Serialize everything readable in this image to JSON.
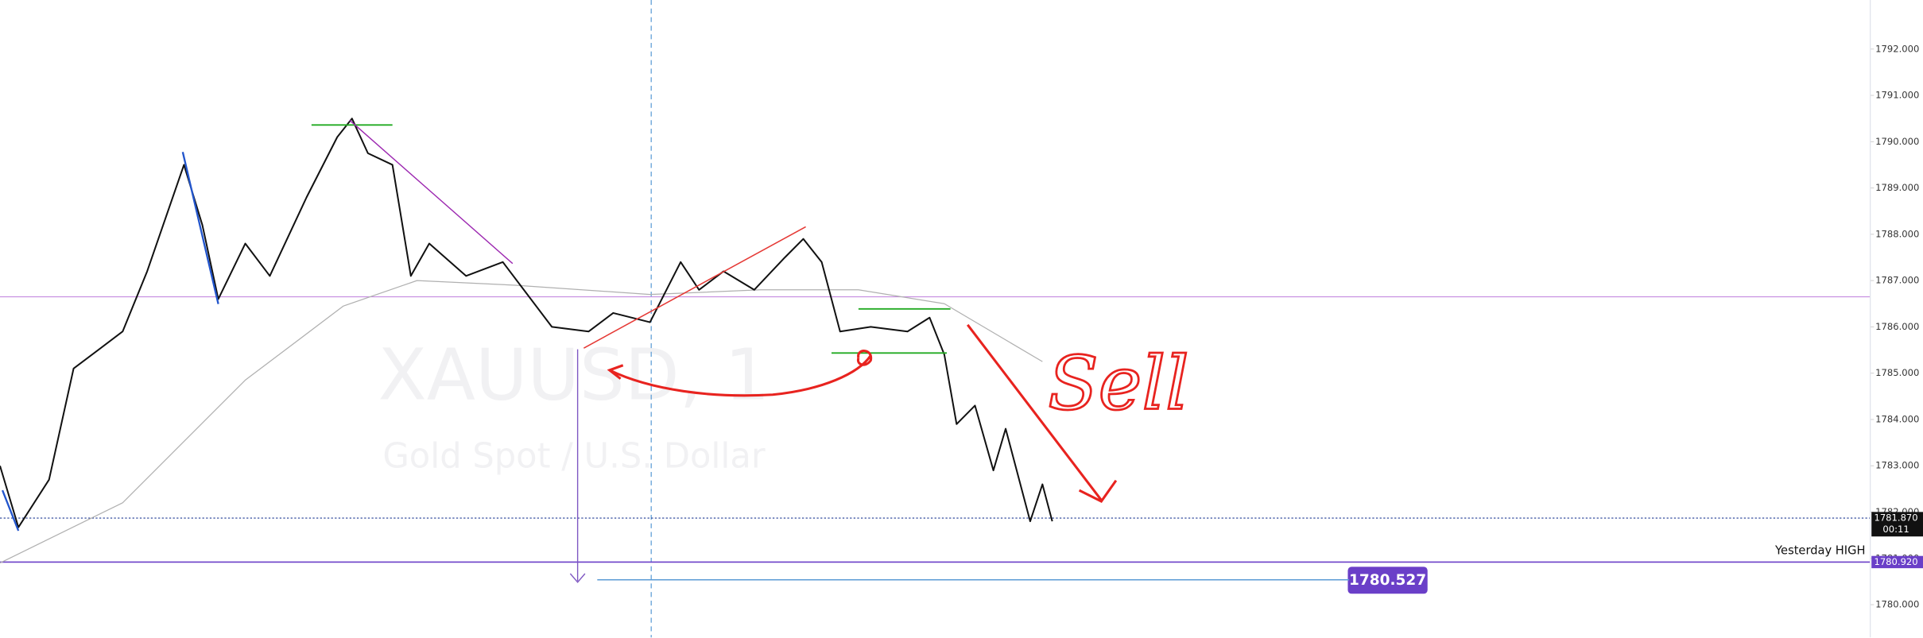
{
  "chart_data": {
    "type": "line",
    "symbol": "XAUUSD, 1",
    "subtitle": "Gold Spot / U.S. Dollar",
    "annotation": "Sell",
    "xlim": [
      0,
      381.25
    ],
    "ylim": [
      1779.28,
      1793.06
    ],
    "yticks": [
      {
        "value": 1780,
        "label": "1780.000"
      },
      {
        "value": 1781,
        "label": "1781.000"
      },
      {
        "value": 1782,
        "label": "1782.000"
      },
      {
        "value": 1783,
        "label": "1783.000"
      },
      {
        "value": 1784,
        "label": "1784.000"
      },
      {
        "value": 1785,
        "label": "1785.000"
      },
      {
        "value": 1786,
        "label": "1786.000"
      },
      {
        "value": 1787,
        "label": "1787.000"
      },
      {
        "value": 1788,
        "label": "1788.000"
      },
      {
        "value": 1789,
        "label": "1789.000"
      },
      {
        "value": 1790,
        "label": "1790.000"
      },
      {
        "value": 1791,
        "label": "1791.000"
      },
      {
        "value": 1792,
        "label": "1792.000"
      }
    ],
    "series": [
      {
        "color": "#111111",
        "x": [
          0,
          3.75,
          10,
          15,
          25,
          30,
          37.5,
          41.25,
          44.5,
          50,
          55,
          62.5,
          68.75,
          71.75,
          75,
          80,
          83.75,
          87.5,
          95,
          102.5,
          107.5,
          112.5,
          120,
          125,
          132.5,
          138.75,
          142.5,
          147.5,
          153.75,
          160,
          163.75,
          167.5,
          171.25,
          177.5,
          185,
          189.5,
          192.5,
          195,
          198.75,
          202.5,
          205,
          210,
          212.5,
          214.5
        ],
        "values": [
          1783.0,
          1781.67,
          1782.7,
          1785.1,
          1785.9,
          1787.2,
          1789.5,
          1788.2,
          1786.6,
          1787.8,
          1787.1,
          1788.8,
          1790.1,
          1790.5,
          1789.75,
          1789.5,
          1787.1,
          1787.8,
          1787.1,
          1787.4,
          1786.7,
          1786.0,
          1785.9,
          1786.3,
          1786.1,
          1787.4,
          1786.8,
          1787.2,
          1786.8,
          1787.5,
          1787.9,
          1787.4,
          1785.9,
          1786.0,
          1785.9,
          1786.2,
          1785.4,
          1783.9,
          1784.3,
          1782.9,
          1783.8,
          1781.8,
          1782.6,
          1781.8
        ]
      },
      {
        "color": "#b0b0b0",
        "x": [
          0,
          25,
          50,
          70,
          85,
          105,
          132.5,
          155,
          175,
          192.5,
          212.5
        ],
        "values": [
          1780.9,
          1782.2,
          1784.85,
          1786.45,
          1787.0,
          1786.9,
          1786.7,
          1786.8,
          1786.8,
          1786.5,
          1785.25
        ]
      }
    ],
    "price_lines": [
      {
        "value": 1781.87,
        "label": "1781.870",
        "color": "#1f3a93",
        "sublabel": "00:11"
      },
      {
        "value": 1780.92,
        "label": "1780.920",
        "color": "#6a3fc8",
        "note": "Yesterday HIGH"
      },
      {
        "value": 1780.527,
        "label": "1780.527",
        "color": "#6a3fc8"
      },
      {
        "value": 1786.65,
        "color": "#c58be0"
      }
    ]
  }
}
